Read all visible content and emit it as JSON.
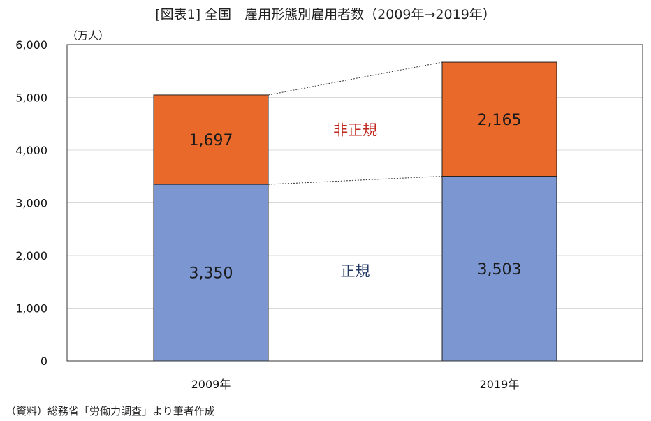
{
  "title": "[図表1] 全国　雇用形態別雇用者数（2009年→2019年）",
  "y_unit": "（万人）",
  "source": "（資料）総務省「労働力調査」より筆者作成",
  "chart_data": {
    "type": "bar",
    "stacked": true,
    "categories": [
      "2009年",
      "2019年"
    ],
    "series": [
      {
        "name": "正規",
        "values": [
          3350,
          3503
        ],
        "labels": [
          "3,350",
          "3,503"
        ],
        "color": "#7b96d1"
      },
      {
        "name": "非正規",
        "values": [
          1697,
          2165
        ],
        "labels": [
          "1,697",
          "2,165"
        ],
        "color": "#e8692a"
      }
    ],
    "ylim": [
      0,
      6000
    ],
    "yticks": [
      0,
      1000,
      2000,
      3000,
      4000,
      5000,
      6000
    ],
    "ytick_labels": [
      "0",
      "1,000",
      "2,000",
      "3,000",
      "4,000",
      "5,000",
      "6,000"
    ],
    "grid": true,
    "connector_lines": true,
    "series_label_colors": {
      "正規": "#1f3864",
      "非正規": "#c0271f"
    }
  }
}
